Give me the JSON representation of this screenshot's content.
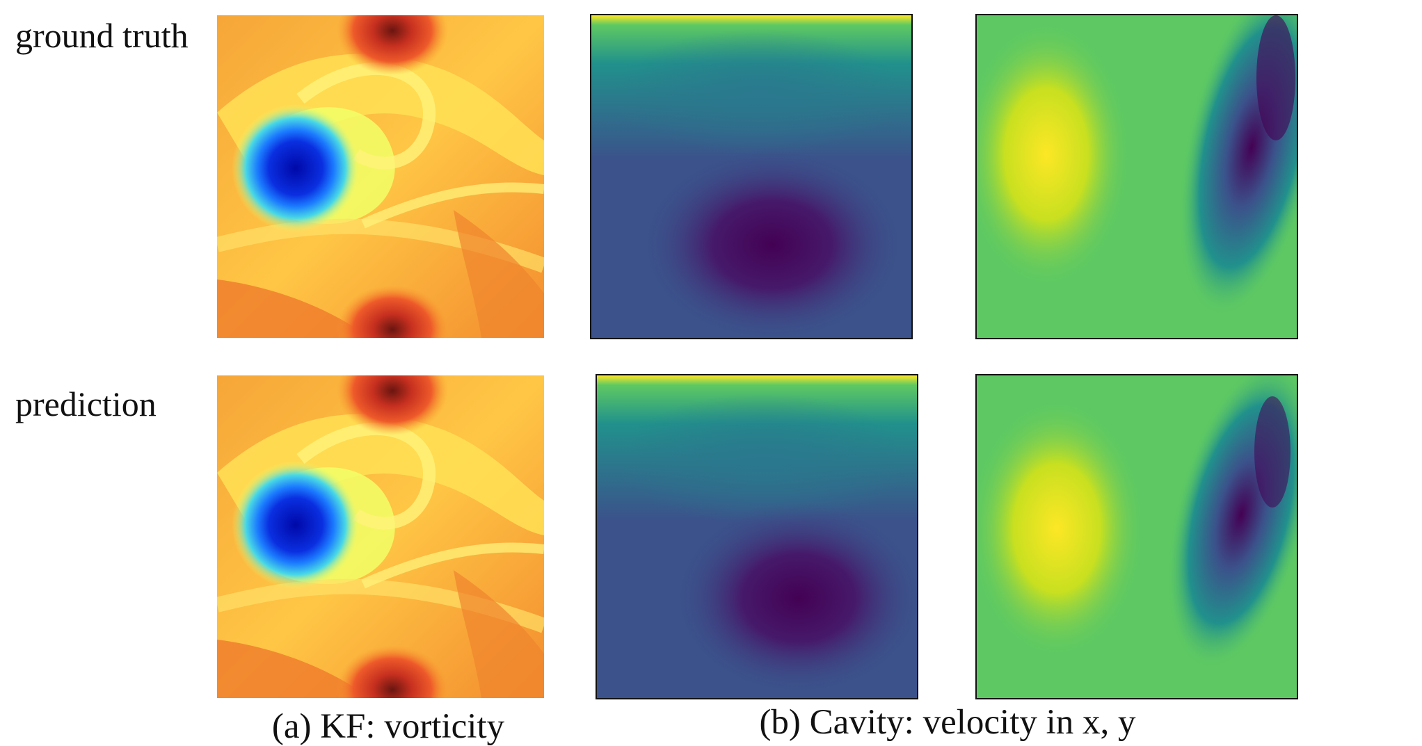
{
  "row_labels": {
    "top": "ground truth",
    "bottom": "prediction"
  },
  "captions": {
    "a": "(a) KF: vorticity",
    "b": "(b) Cavity: velocity in x, y"
  },
  "colormaps": {
    "vorticity": [
      "#0008a8",
      "#1c7cff",
      "#48d8e6",
      "#f0ff62",
      "#ffd640",
      "#f79a2c",
      "#e9532a",
      "#7a1c12"
    ],
    "velocity": [
      "#440154",
      "#3b528b",
      "#21918c",
      "#5ec962",
      "#fde725"
    ]
  }
}
